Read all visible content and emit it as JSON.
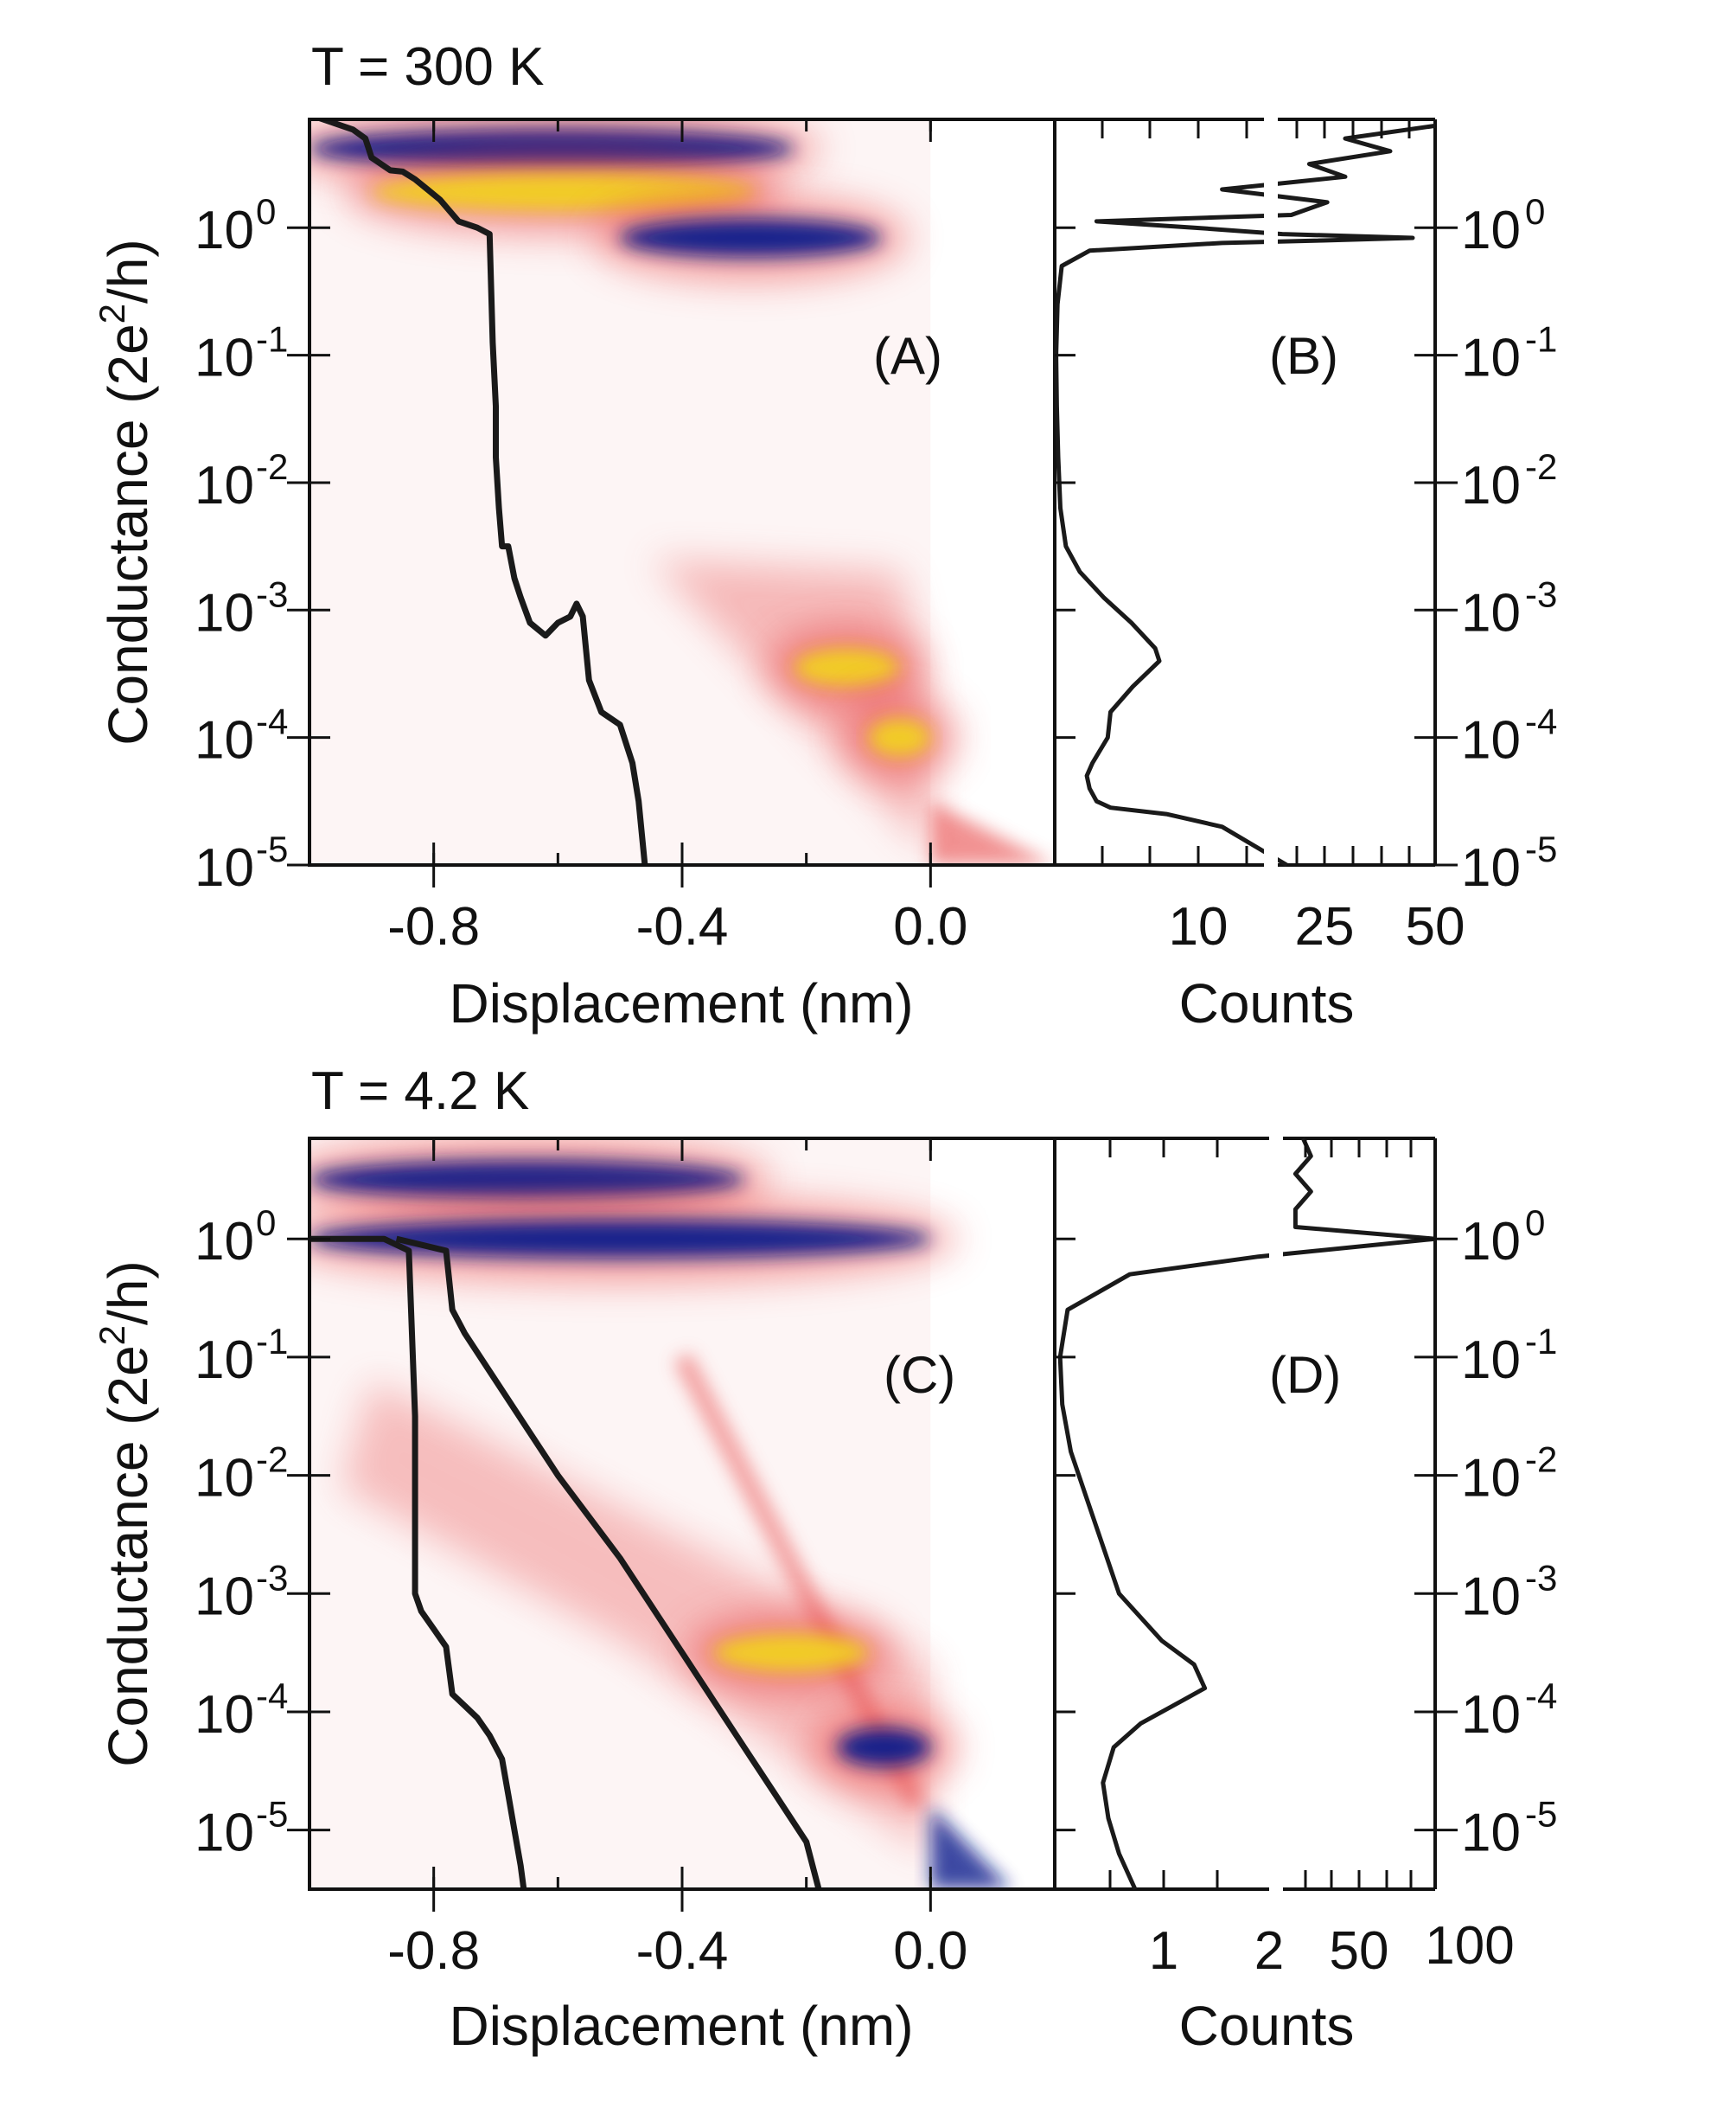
{
  "colors": {
    "trace": "#1a1a1a",
    "density_low": "#f3c9c9",
    "density_mid": "#e8484a",
    "density_high": "#f2d020",
    "density_top": "#0a1d8c"
  },
  "chart_data": [
    {
      "type": "heatmap",
      "title": "T = 300 K",
      "panel_label": "(A)",
      "xlabel": "Displacement (nm)",
      "ylabel": "Conductance (2e²/h)",
      "ylabel_parts": {
        "prefix": "Conductance (2e",
        "sup": "2",
        "suffix": "/h)"
      },
      "xlim": [
        -1.0,
        0.2
      ],
      "ylim_log10": [
        -5,
        0.85
      ],
      "xticks": [
        {
          "value": -0.8,
          "label": "-0.8"
        },
        {
          "value": -0.4,
          "label": "-0.4"
        },
        {
          "value": 0.0,
          "label": "0.0"
        }
      ],
      "yticks": [
        {
          "value": 0,
          "base": "10",
          "exp": "0"
        },
        {
          "value": -1,
          "base": "10",
          "exp": "-1"
        },
        {
          "value": -2,
          "base": "10",
          "exp": "-2"
        },
        {
          "value": -3,
          "base": "10",
          "exp": "-3"
        },
        {
          "value": -4,
          "base": "10",
          "exp": "-4"
        },
        {
          "value": -5,
          "base": "10",
          "exp": "-5"
        }
      ],
      "density_features": [
        {
          "x0": -1.0,
          "x1": -0.22,
          "logG": 0.62,
          "level": "top"
        },
        {
          "x0": -0.9,
          "x1": -0.28,
          "logG": 0.28,
          "level": "high"
        },
        {
          "x0": -0.5,
          "x1": -0.08,
          "logG": -0.08,
          "level": "top"
        },
        {
          "x0": -0.22,
          "x1": -0.05,
          "logG": -3.45,
          "level": "high"
        },
        {
          "x0": -0.1,
          "x1": 0.0,
          "logG": -4.0,
          "level": "high"
        }
      ],
      "traces": [
        {
          "name": "example-trace",
          "points": [
            [
              -0.99,
              0.87
            ],
            [
              -0.96,
              0.82
            ],
            [
              -0.93,
              0.77
            ],
            [
              -0.91,
              0.7
            ],
            [
              -0.9,
              0.55
            ],
            [
              -0.87,
              0.45
            ],
            [
              -0.85,
              0.44
            ],
            [
              -0.83,
              0.38
            ],
            [
              -0.81,
              0.3
            ],
            [
              -0.79,
              0.22
            ],
            [
              -0.76,
              0.05
            ],
            [
              -0.73,
              0.0
            ],
            [
              -0.71,
              -0.05
            ],
            [
              -0.705,
              -0.9
            ],
            [
              -0.7,
              -1.4
            ],
            [
              -0.7,
              -1.8
            ],
            [
              -0.695,
              -2.2
            ],
            [
              -0.69,
              -2.5
            ],
            [
              -0.68,
              -2.5
            ],
            [
              -0.67,
              -2.75
            ],
            [
              -0.66,
              -2.9
            ],
            [
              -0.645,
              -3.1
            ],
            [
              -0.62,
              -3.2
            ],
            [
              -0.6,
              -3.1
            ],
            [
              -0.58,
              -3.05
            ],
            [
              -0.57,
              -2.95
            ],
            [
              -0.56,
              -3.05
            ],
            [
              -0.55,
              -3.55
            ],
            [
              -0.53,
              -3.8
            ],
            [
              -0.5,
              -3.9
            ],
            [
              -0.48,
              -4.2
            ],
            [
              -0.47,
              -4.5
            ],
            [
              -0.46,
              -5.0
            ]
          ]
        }
      ]
    },
    {
      "type": "line",
      "panel_label": "(B)",
      "xlabel": "Counts",
      "xticks": [
        {
          "label": "10"
        },
        {
          "label": "25"
        },
        {
          "label": "50"
        }
      ],
      "yticks_right": [
        {
          "value": 0,
          "base": "10",
          "exp": "0"
        },
        {
          "value": -1,
          "base": "10",
          "exp": "-1"
        },
        {
          "value": -2,
          "base": "10",
          "exp": "-2"
        },
        {
          "value": -3,
          "base": "10",
          "exp": "-3"
        },
        {
          "value": -4,
          "base": "10",
          "exp": "-4"
        },
        {
          "value": -5,
          "base": "10",
          "exp": "-5"
        }
      ],
      "note": "broken x-axis: linear 0-15 then larger scale 15-50",
      "ylim_log10": [
        -5,
        0.85
      ],
      "histogram": [
        [
          -5.0,
          17
        ],
        [
          -4.7,
          12
        ],
        [
          -4.6,
          8
        ],
        [
          -4.55,
          4
        ],
        [
          -4.5,
          3
        ],
        [
          -4.4,
          2.5
        ],
        [
          -4.3,
          2.3
        ],
        [
          -4.2,
          2.7
        ],
        [
          -4.0,
          3.8
        ],
        [
          -3.8,
          4.0
        ],
        [
          -3.6,
          5.6
        ],
        [
          -3.4,
          7.5
        ],
        [
          -3.3,
          7.2
        ],
        [
          -3.1,
          5.5
        ],
        [
          -2.9,
          3.5
        ],
        [
          -2.7,
          1.8
        ],
        [
          -2.5,
          0.8
        ],
        [
          -2.2,
          0.4
        ],
        [
          -1.8,
          0.25
        ],
        [
          -1.4,
          0.15
        ],
        [
          -1.0,
          0.1
        ],
        [
          -0.6,
          0.2
        ],
        [
          -0.3,
          0.5
        ],
        [
          -0.18,
          2.5
        ],
        [
          -0.12,
          12
        ],
        [
          -0.1,
          25
        ],
        [
          -0.08,
          45
        ],
        [
          -0.05,
          16
        ],
        [
          0.0,
          10
        ],
        [
          0.05,
          3
        ],
        [
          0.1,
          18
        ],
        [
          0.2,
          26
        ],
        [
          0.3,
          12
        ],
        [
          0.4,
          30
        ],
        [
          0.5,
          22
        ],
        [
          0.6,
          40
        ],
        [
          0.7,
          30
        ],
        [
          0.8,
          50
        ]
      ]
    },
    {
      "type": "heatmap",
      "title": "T = 4.2 K",
      "panel_label": "(C)",
      "xlabel": "Displacement (nm)",
      "ylabel": "Conductance (2e²/h)",
      "ylabel_parts": {
        "prefix": "Conductance (2e",
        "sup": "2",
        "suffix": "/h)"
      },
      "xlim": [
        -1.0,
        0.2
      ],
      "ylim_log10": [
        -5.5,
        0.85
      ],
      "xticks": [
        {
          "value": -0.8,
          "label": "-0.8"
        },
        {
          "value": -0.4,
          "label": "-0.4"
        },
        {
          "value": 0.0,
          "label": "0.0"
        }
      ],
      "yticks": [
        {
          "value": 0,
          "base": "10",
          "exp": "0"
        },
        {
          "value": -1,
          "base": "10",
          "exp": "-1"
        },
        {
          "value": -2,
          "base": "10",
          "exp": "-2"
        },
        {
          "value": -3,
          "base": "10",
          "exp": "-3"
        },
        {
          "value": -4,
          "base": "10",
          "exp": "-4"
        },
        {
          "value": -5,
          "base": "10",
          "exp": "-5"
        }
      ],
      "density_features": [
        {
          "x0": -1.0,
          "x1": -0.3,
          "logG": 0.5,
          "level": "top"
        },
        {
          "x0": -1.0,
          "x1": 0.0,
          "logG": 0.0,
          "level": "top"
        },
        {
          "x0": -0.35,
          "x1": -0.1,
          "logG": -3.5,
          "level": "high"
        },
        {
          "x0": -0.15,
          "x1": 0.0,
          "logG": -4.3,
          "level": "top"
        }
      ],
      "traces": [
        {
          "name": "example-trace-steep",
          "points": [
            [
              -1.0,
              0.0
            ],
            [
              -0.88,
              0.0
            ],
            [
              -0.84,
              -0.1
            ],
            [
              -0.83,
              -1.5
            ],
            [
              -0.83,
              -3.0
            ],
            [
              -0.82,
              -3.15
            ],
            [
              -0.8,
              -3.3
            ],
            [
              -0.78,
              -3.45
            ],
            [
              -0.77,
              -3.85
            ],
            [
              -0.75,
              -3.95
            ],
            [
              -0.73,
              -4.05
            ],
            [
              -0.71,
              -4.2
            ],
            [
              -0.69,
              -4.4
            ],
            [
              -0.68,
              -4.7
            ],
            [
              -0.67,
              -5.0
            ],
            [
              -0.66,
              -5.3
            ],
            [
              -0.655,
              -5.5
            ]
          ]
        },
        {
          "name": "example-trace-gradual",
          "points": [
            [
              -0.86,
              0.0
            ],
            [
              -0.78,
              -0.1
            ],
            [
              -0.77,
              -0.6
            ],
            [
              -0.75,
              -0.8
            ],
            [
              -0.7,
              -1.2
            ],
            [
              -0.6,
              -2.0
            ],
            [
              -0.5,
              -2.7
            ],
            [
              -0.4,
              -3.5
            ],
            [
              -0.35,
              -3.9
            ],
            [
              -0.3,
              -4.3
            ],
            [
              -0.25,
              -4.7
            ],
            [
              -0.2,
              -5.1
            ],
            [
              -0.18,
              -5.5
            ]
          ]
        }
      ]
    },
    {
      "type": "line",
      "panel_label": "(D)",
      "xlabel": "Counts",
      "xticks": [
        {
          "label": "1"
        },
        {
          "label": "2"
        },
        {
          "label": "50"
        },
        {
          "label": "100"
        }
      ],
      "yticks_right": [
        {
          "value": 0,
          "base": "10",
          "exp": "0"
        },
        {
          "value": -1,
          "base": "10",
          "exp": "-1"
        },
        {
          "value": -2,
          "base": "10",
          "exp": "-2"
        },
        {
          "value": -3,
          "base": "10",
          "exp": "-3"
        },
        {
          "value": -4,
          "base": "10",
          "exp": "-4"
        },
        {
          "value": -5,
          "base": "10",
          "exp": "-5"
        }
      ],
      "note": "broken x-axis: linear 0-2 then larger scale 2-100",
      "ylim_log10": [
        -5.5,
        0.85
      ],
      "histogram": [
        [
          -5.5,
          0.75
        ],
        [
          -5.2,
          0.6
        ],
        [
          -4.9,
          0.5
        ],
        [
          -4.6,
          0.45
        ],
        [
          -4.3,
          0.55
        ],
        [
          -4.1,
          0.8
        ],
        [
          -3.9,
          1.2
        ],
        [
          -3.8,
          1.4
        ],
        [
          -3.6,
          1.3
        ],
        [
          -3.4,
          1.0
        ],
        [
          -3.0,
          0.6
        ],
        [
          -2.6,
          0.45
        ],
        [
          -2.2,
          0.3
        ],
        [
          -1.8,
          0.15
        ],
        [
          -1.4,
          0.07
        ],
        [
          -1.0,
          0.05
        ],
        [
          -0.6,
          0.12
        ],
        [
          -0.3,
          0.7
        ],
        [
          -0.15,
          1.9
        ],
        [
          0.0,
          100
        ],
        [
          0.1,
          10
        ],
        [
          0.25,
          10
        ],
        [
          0.4,
          20
        ],
        [
          0.55,
          10
        ],
        [
          0.7,
          20
        ],
        [
          0.85,
          15
        ]
      ]
    }
  ]
}
